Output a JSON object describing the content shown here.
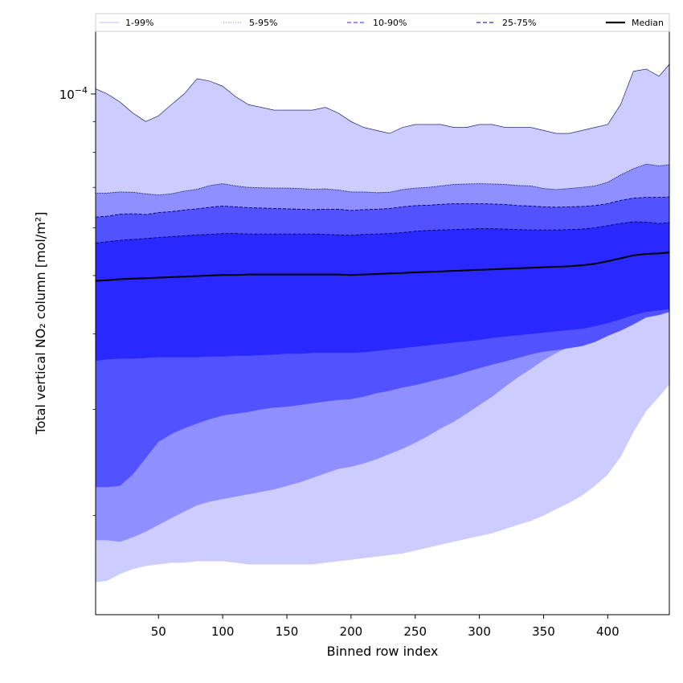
{
  "chart_data": {
    "type": "area",
    "xlabel": "Binned row index",
    "ylabel": "Total vertical NO₂ column [mol/m²]",
    "y_scale": "log",
    "xlim": [
      1,
      448
    ],
    "ylim": [
      1.37e-05,
      0.000127
    ],
    "x_ticks": [
      50,
      100,
      150,
      200,
      250,
      300,
      350,
      400
    ],
    "x_tick_labels": [
      "50",
      "100",
      "150",
      "200",
      "250",
      "300",
      "350",
      "400"
    ],
    "y_ticks": [
      0.0001
    ],
    "y_tick_labels": [
      "10",
      "−4"
    ],
    "grid": false,
    "legend_position": "top (spanning)",
    "legend": [
      {
        "label": "1-99%",
        "color": "#ccccff",
        "style": "solid"
      },
      {
        "label": "5-95%",
        "color": "#8f8fff",
        "style": "dotted"
      },
      {
        "label": "10-90%",
        "color": "#5252ff",
        "style": "dashed"
      },
      {
        "label": "25-75%",
        "color": "#2828ff",
        "style": "dashed"
      },
      {
        "label": "Median",
        "color": "#000000",
        "style": "solid"
      }
    ],
    "x": [
      1,
      10,
      20,
      30,
      40,
      50,
      60,
      70,
      80,
      90,
      100,
      110,
      120,
      130,
      140,
      150,
      160,
      170,
      180,
      190,
      200,
      210,
      220,
      230,
      240,
      250,
      260,
      270,
      280,
      290,
      300,
      310,
      320,
      330,
      340,
      350,
      360,
      370,
      380,
      390,
      400,
      410,
      420,
      430,
      440,
      448
    ],
    "bands": [
      {
        "name": "1-99%",
        "color": "#ccccff",
        "lower": [
          1.55e-05,
          1.56e-05,
          1.6e-05,
          1.63e-05,
          1.65e-05,
          1.66e-05,
          1.67e-05,
          1.67e-05,
          1.68e-05,
          1.68e-05,
          1.68e-05,
          1.67e-05,
          1.66e-05,
          1.66e-05,
          1.66e-05,
          1.66e-05,
          1.66e-05,
          1.66e-05,
          1.67e-05,
          1.68e-05,
          1.69e-05,
          1.7e-05,
          1.71e-05,
          1.72e-05,
          1.73e-05,
          1.75e-05,
          1.77e-05,
          1.79e-05,
          1.81e-05,
          1.83e-05,
          1.85e-05,
          1.87e-05,
          1.9e-05,
          1.93e-05,
          1.96e-05,
          2e-05,
          2.05e-05,
          2.1e-05,
          2.16e-05,
          2.24e-05,
          2.34e-05,
          2.5e-05,
          2.75e-05,
          2.98e-05,
          3.15e-05,
          3.3e-05
        ],
        "upper": [
          0.000102,
          0.0001,
          9.7e-05,
          9.3e-05,
          9e-05,
          9.2e-05,
          9.6e-05,
          0.0001,
          0.000106,
          0.000105,
          0.000103,
          9.9e-05,
          9.6e-05,
          9.5e-05,
          9.4e-05,
          9.4e-05,
          9.4e-05,
          9.4e-05,
          9.5e-05,
          9.3e-05,
          9e-05,
          8.8e-05,
          8.7e-05,
          8.6e-05,
          8.8e-05,
          8.9e-05,
          8.9e-05,
          8.9e-05,
          8.8e-05,
          8.8e-05,
          8.9e-05,
          8.9e-05,
          8.8e-05,
          8.8e-05,
          8.8e-05,
          8.7e-05,
          8.6e-05,
          8.6e-05,
          8.7e-05,
          8.8e-05,
          8.9e-05,
          9.6e-05,
          0.000109,
          0.00011,
          0.000107,
          0.000112
        ]
      },
      {
        "name": "5-95%",
        "color": "#8f8fff",
        "lower": [
          1.82e-05,
          1.82e-05,
          1.81e-05,
          1.84e-05,
          1.88e-05,
          1.93e-05,
          1.98e-05,
          2.03e-05,
          2.08e-05,
          2.11e-05,
          2.13e-05,
          2.15e-05,
          2.17e-05,
          2.19e-05,
          2.21e-05,
          2.24e-05,
          2.27e-05,
          2.31e-05,
          2.35e-05,
          2.39e-05,
          2.41e-05,
          2.44e-05,
          2.48e-05,
          2.53e-05,
          2.58e-05,
          2.64e-05,
          2.71e-05,
          2.79e-05,
          2.86e-05,
          2.95e-05,
          3.05e-05,
          3.15e-05,
          3.27e-05,
          3.39e-05,
          3.5e-05,
          3.62e-05,
          3.72e-05,
          3.81e-05,
          3.91e-05,
          4e-05,
          4.1e-05,
          4.2e-05,
          4.32e-05,
          4.45e-05,
          4.5e-05,
          4.58e-05
        ],
        "upper": [
          6.85e-05,
          6.85e-05,
          6.88e-05,
          6.87e-05,
          6.83e-05,
          6.8e-05,
          6.83e-05,
          6.9e-05,
          6.95e-05,
          7.05e-05,
          7.1e-05,
          7.04e-05,
          7e-05,
          6.99e-05,
          6.98e-05,
          6.98e-05,
          6.97e-05,
          6.95e-05,
          6.96e-05,
          6.93e-05,
          6.88e-05,
          6.88e-05,
          6.86e-05,
          6.87e-05,
          6.94e-05,
          6.98e-05,
          7e-05,
          7.04e-05,
          7.08e-05,
          7.09e-05,
          7.1e-05,
          7.09e-05,
          7.08e-05,
          7.05e-05,
          7.04e-05,
          6.97e-05,
          6.94e-05,
          6.97e-05,
          7e-05,
          7.04e-05,
          7.14e-05,
          7.34e-05,
          7.52e-05,
          7.65e-05,
          7.6e-05,
          7.63e-05
        ]
      },
      {
        "name": "10-90%",
        "color": "#5252ff",
        "lower": [
          2.23e-05,
          2.23e-05,
          2.24e-05,
          2.34e-05,
          2.49e-05,
          2.65e-05,
          2.73e-05,
          2.79e-05,
          2.84e-05,
          2.89e-05,
          2.93e-05,
          2.95e-05,
          2.97e-05,
          3e-05,
          3.02e-05,
          3.03e-05,
          3.05e-05,
          3.07e-05,
          3.09e-05,
          3.11e-05,
          3.12e-05,
          3.15e-05,
          3.19e-05,
          3.22e-05,
          3.26e-05,
          3.29e-05,
          3.33e-05,
          3.37e-05,
          3.41e-05,
          3.46e-05,
          3.51e-05,
          3.56e-05,
          3.6e-05,
          3.65e-05,
          3.7e-05,
          3.74e-05,
          3.76e-05,
          3.79e-05,
          3.82e-05,
          3.88e-05,
          3.97e-05,
          4.05e-05,
          4.15e-05,
          4.26e-05,
          4.3e-05,
          4.35e-05
        ],
        "upper": [
          6.25e-05,
          6.27e-05,
          6.32e-05,
          6.33e-05,
          6.31e-05,
          6.36e-05,
          6.38e-05,
          6.42e-05,
          6.45e-05,
          6.49e-05,
          6.52e-05,
          6.5e-05,
          6.48e-05,
          6.47e-05,
          6.46e-05,
          6.45e-05,
          6.44e-05,
          6.43e-05,
          6.44e-05,
          6.44e-05,
          6.41e-05,
          6.43e-05,
          6.44e-05,
          6.46e-05,
          6.5e-05,
          6.53e-05,
          6.54e-05,
          6.56e-05,
          6.58e-05,
          6.58e-05,
          6.58e-05,
          6.57e-05,
          6.56e-05,
          6.53e-05,
          6.52e-05,
          6.5e-05,
          6.49e-05,
          6.5e-05,
          6.51e-05,
          6.53e-05,
          6.58e-05,
          6.66e-05,
          6.72e-05,
          6.74e-05,
          6.74e-05,
          6.75e-05
        ]
      },
      {
        "name": "25-75%",
        "color": "#2828ff",
        "lower": [
          3.61e-05,
          3.63e-05,
          3.64e-05,
          3.64e-05,
          3.65e-05,
          3.66e-05,
          3.66e-05,
          3.66e-05,
          3.66e-05,
          3.67e-05,
          3.67e-05,
          3.68e-05,
          3.68e-05,
          3.69e-05,
          3.7e-05,
          3.71e-05,
          3.71e-05,
          3.72e-05,
          3.72e-05,
          3.72e-05,
          3.72e-05,
          3.73e-05,
          3.75e-05,
          3.77e-05,
          3.79e-05,
          3.81e-05,
          3.83e-05,
          3.85e-05,
          3.87e-05,
          3.89e-05,
          3.91e-05,
          3.94e-05,
          3.96e-05,
          3.98e-05,
          4e-05,
          4.02e-05,
          4.04e-05,
          4.06e-05,
          4.08e-05,
          4.12e-05,
          4.17e-05,
          4.23e-05,
          4.3e-05,
          4.35e-05,
          4.38e-05,
          4.4e-05
        ],
        "upper": [
          5.66e-05,
          5.69e-05,
          5.72e-05,
          5.74e-05,
          5.76e-05,
          5.78e-05,
          5.8e-05,
          5.82e-05,
          5.84e-05,
          5.85e-05,
          5.87e-05,
          5.87e-05,
          5.86e-05,
          5.86e-05,
          5.86e-05,
          5.86e-05,
          5.86e-05,
          5.86e-05,
          5.85e-05,
          5.84e-05,
          5.83e-05,
          5.85e-05,
          5.86e-05,
          5.87e-05,
          5.89e-05,
          5.92e-05,
          5.94e-05,
          5.95e-05,
          5.96e-05,
          5.97e-05,
          5.98e-05,
          5.98e-05,
          5.97e-05,
          5.96e-05,
          5.95e-05,
          5.95e-05,
          5.95e-05,
          5.96e-05,
          5.97e-05,
          6e-05,
          6.05e-05,
          6.1e-05,
          6.14e-05,
          6.13e-05,
          6.1e-05,
          6.12e-05
        ]
      }
    ],
    "series": [
      {
        "name": "Median",
        "color": "#000000",
        "values": [
          4.9e-05,
          4.91e-05,
          4.93e-05,
          4.94e-05,
          4.95e-05,
          4.96e-05,
          4.97e-05,
          4.98e-05,
          4.99e-05,
          5e-05,
          5.01e-05,
          5.01e-05,
          5.02e-05,
          5.02e-05,
          5.02e-05,
          5.02e-05,
          5.02e-05,
          5.02e-05,
          5.02e-05,
          5.02e-05,
          5.01e-05,
          5.02e-05,
          5.03e-05,
          5.04e-05,
          5.05e-05,
          5.06e-05,
          5.07e-05,
          5.08e-05,
          5.09e-05,
          5.1e-05,
          5.11e-05,
          5.12e-05,
          5.13e-05,
          5.14e-05,
          5.15e-05,
          5.16e-05,
          5.17e-05,
          5.18e-05,
          5.2e-05,
          5.23e-05,
          5.28e-05,
          5.34e-05,
          5.4e-05,
          5.43e-05,
          5.44e-05,
          5.46e-05
        ]
      }
    ]
  }
}
